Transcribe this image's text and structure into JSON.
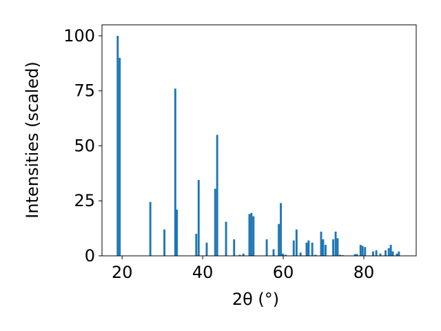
{
  "chart_data": {
    "type": "bar",
    "xlabel": "2θ (°)",
    "ylabel": "Intensities (scaled)",
    "xlim": [
      15,
      93
    ],
    "ylim": [
      0,
      105
    ],
    "x_ticks": [
      20,
      40,
      60,
      80
    ],
    "y_ticks": [
      0,
      25,
      50,
      75,
      100
    ],
    "grid": false,
    "bar_color": "#1f77b4",
    "bar_width": 0.5,
    "x": [
      18.9,
      19.4,
      27.0,
      30.5,
      33.2,
      33.6,
      38.4,
      39.0,
      41.0,
      43.1,
      43.6,
      45.8,
      47.8,
      49.2,
      50.1,
      51.6,
      52.1,
      52.6,
      55.9,
      57.6,
      58.9,
      59.4,
      59.9,
      60.6,
      62.6,
      63.3,
      64.3,
      65.8,
      66.3,
      67.2,
      68.0,
      69.4,
      69.9,
      70.5,
      72.4,
      73.0,
      73.5,
      74.1,
      74.8,
      77.8,
      78.3,
      79.2,
      79.7,
      80.3,
      82.3,
      83.1,
      84.1,
      85.4,
      86.2,
      86.7,
      87.2,
      88.2,
      88.7
    ],
    "values": [
      100,
      90,
      24.5,
      12,
      76,
      21,
      10,
      34.5,
      6,
      30.5,
      55,
      15.5,
      7.5,
      0.5,
      1,
      19,
      19.5,
      18,
      7.5,
      3,
      14.5,
      24,
      1,
      0.5,
      7,
      12,
      1.5,
      6,
      7,
      6,
      0.5,
      11,
      7.5,
      5,
      7.5,
      11,
      8,
      0.5,
      0.3,
      0.8,
      0.8,
      5,
      4.5,
      4,
      2,
      2.5,
      1,
      2.5,
      3.5,
      5,
      2,
      1,
      2
    ]
  }
}
